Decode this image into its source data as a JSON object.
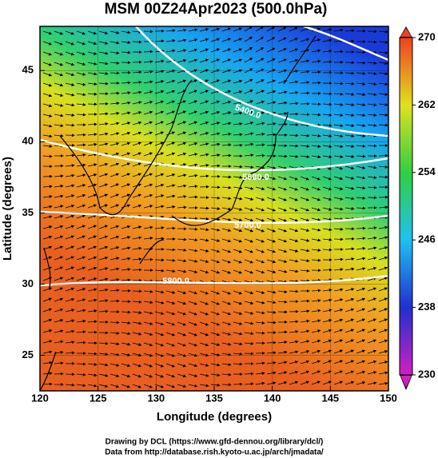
{
  "chart_data": {
    "type": "map",
    "title": "MSM 00Z24Apr2023 (500.0hPa)",
    "x_label": "Longitude (degrees)",
    "y_label": "Latitude  (degrees)",
    "xlim": [
      120,
      150
    ],
    "xticks": [
      120,
      125,
      130,
      135,
      140,
      145,
      150
    ],
    "ylim": [
      22.5,
      48.1
    ],
    "yticks": [
      25,
      30,
      35,
      40,
      45
    ],
    "clim": [
      230,
      270
    ],
    "cticks": [
      230,
      238,
      246,
      254,
      262,
      270
    ],
    "contour_labels": [
      "5400.0",
      "5600.0",
      "5700.0",
      "5800.0"
    ],
    "footer": [
      "Drawing by DCL (https://www.gfd-dennou.org/library/dcl/)",
      "Data from http://database.rish.kyoto-u.ac.jp/arch/jmadata/"
    ]
  }
}
